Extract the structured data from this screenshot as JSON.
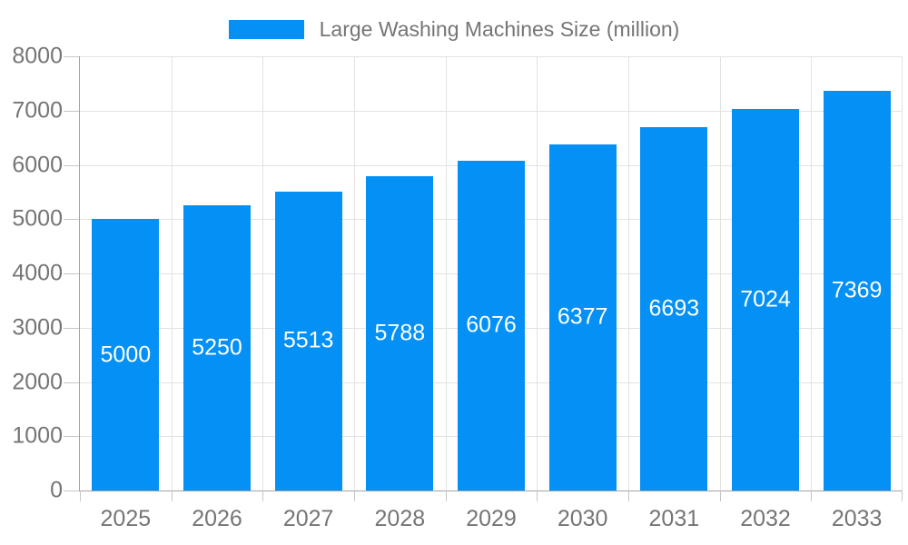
{
  "chart_data": {
    "type": "bar",
    "title": "",
    "legend": "Large Washing Machines Size (million)",
    "legend_position": "top-center",
    "categories": [
      "2025",
      "2026",
      "2027",
      "2028",
      "2029",
      "2030",
      "2031",
      "2032",
      "2033"
    ],
    "values": [
      5000,
      5250,
      5513,
      5788,
      6076,
      6377,
      6693,
      7024,
      7369
    ],
    "xlabel": "",
    "ylabel": "",
    "ylim": [
      0,
      8000
    ],
    "yticks": [
      0,
      1000,
      2000,
      3000,
      4000,
      5000,
      6000,
      7000,
      8000
    ],
    "grid": true,
    "colors": {
      "bar": "#0490f4",
      "bar_label": "#ffffff",
      "axis": "#a2a2a2",
      "tick": "#c6c6c6",
      "gridline": "#e2e2e2",
      "text": "#757575",
      "background": "#ffffff"
    }
  }
}
